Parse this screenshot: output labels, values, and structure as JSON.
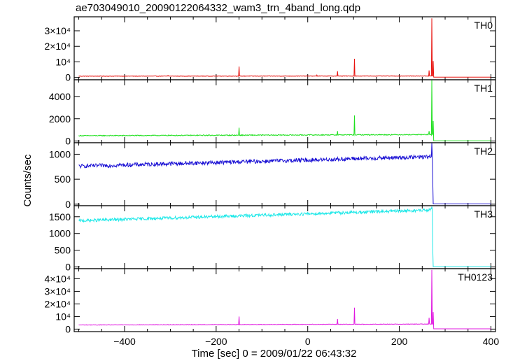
{
  "chart_data": {
    "type": "line",
    "title": "ae703049010_20090122064332_wam3_trn_4band_long.qdp",
    "xlabel": "Time [sec] 0 = 2009/01/22 06:43:32",
    "ylabel": "Counts/sec",
    "xlim": [
      -510,
      410
    ],
    "x_ticks": [
      -400,
      -200,
      0,
      200,
      400
    ],
    "grid": false,
    "panels": [
      {
        "name": "TH0",
        "color": "#e8130f",
        "ylim": [
          -1500,
          39000
        ],
        "y_ticks": [
          {
            "value": 0,
            "label": "0"
          },
          {
            "value": 10000,
            "label": "10⁴"
          },
          {
            "value": 20000,
            "label": "2×10⁴"
          },
          {
            "value": 30000,
            "label": "3×10⁴"
          }
        ],
        "baseline": [
          {
            "x": -500,
            "y": 800
          },
          {
            "x": 270,
            "y": 900
          }
        ],
        "noise": 150,
        "spikes": [
          {
            "x": -305,
            "y": 1300
          },
          {
            "x": -150,
            "y": 7000
          },
          {
            "x": 20,
            "y": 1500
          },
          {
            "x": 65,
            "y": 4000
          },
          {
            "x": 102,
            "y": 12000
          },
          {
            "x": 265,
            "y": 4500
          },
          {
            "x": 271,
            "y": 38000
          },
          {
            "x": 274,
            "y": 10500
          }
        ],
        "after_burst": 150
      },
      {
        "name": "TH1",
        "color": "#1fe01f",
        "ylim": [
          -150,
          5500
        ],
        "y_ticks": [
          {
            "value": 0,
            "label": "0"
          },
          {
            "value": 2000,
            "label": "2000"
          },
          {
            "value": 4000,
            "label": "4000"
          }
        ],
        "baseline": [
          {
            "x": -500,
            "y": 480
          },
          {
            "x": 270,
            "y": 580
          }
        ],
        "noise": 40,
        "spikes": [
          {
            "x": -150,
            "y": 1200
          },
          {
            "x": 65,
            "y": 900
          },
          {
            "x": 102,
            "y": 2300
          },
          {
            "x": 265,
            "y": 900
          },
          {
            "x": 271,
            "y": 5450
          },
          {
            "x": 274,
            "y": 1800
          }
        ],
        "after_burst": 20
      },
      {
        "name": "TH2",
        "color": "#1a10d4",
        "ylim": [
          -30,
          1230
        ],
        "y_ticks": [
          {
            "value": 0,
            "label": "0"
          },
          {
            "value": 500,
            "label": "500"
          },
          {
            "value": 1000,
            "label": "1000"
          }
        ],
        "baseline": [
          {
            "x": -500,
            "y": 760
          },
          {
            "x": 270,
            "y": 950
          }
        ],
        "noise": 40,
        "spikes": [
          {
            "x": 271,
            "y": 1220
          },
          {
            "x": 273,
            "y": 430
          }
        ],
        "after_burst": 5
      },
      {
        "name": "TH3",
        "color": "#1de8e8",
        "ylim": [
          -50,
          1830
        ],
        "y_ticks": [
          {
            "value": 0,
            "label": "0"
          },
          {
            "value": 500,
            "label": "500"
          },
          {
            "value": 1000,
            "label": "1000"
          },
          {
            "value": 1500,
            "label": "1500"
          }
        ],
        "baseline": [
          {
            "x": -500,
            "y": 1380
          },
          {
            "x": 270,
            "y": 1700
          }
        ],
        "noise": 45,
        "spikes": [
          {
            "x": 271,
            "y": 1800
          },
          {
            "x": 273,
            "y": 500
          }
        ],
        "after_burst": 8
      },
      {
        "name": "TH0123",
        "color": "#e019e0",
        "ylim": [
          -2000,
          48000
        ],
        "y_ticks": [
          {
            "value": 0,
            "label": "0"
          },
          {
            "value": 10000,
            "label": "10⁴"
          },
          {
            "value": 20000,
            "label": "2×10⁴"
          },
          {
            "value": 30000,
            "label": "3×10⁴"
          },
          {
            "value": 40000,
            "label": "4×10⁴"
          }
        ],
        "baseline": [
          {
            "x": -500,
            "y": 3300
          },
          {
            "x": 270,
            "y": 4000
          }
        ],
        "noise": 200,
        "spikes": [
          {
            "x": -150,
            "y": 10000
          },
          {
            "x": 65,
            "y": 8000
          },
          {
            "x": 102,
            "y": 17000
          },
          {
            "x": 265,
            "y": 9000
          },
          {
            "x": 271,
            "y": 47000
          },
          {
            "x": 274,
            "y": 13500
          }
        ],
        "after_burst": 200
      }
    ]
  }
}
